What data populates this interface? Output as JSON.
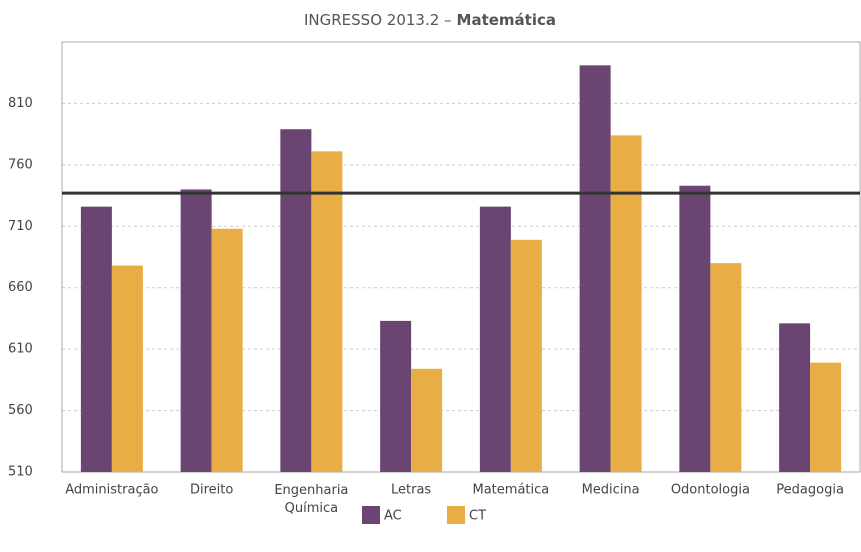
{
  "chart_data": {
    "type": "bar",
    "title": "INGRESSO 2013.2 –",
    "title_emphasis": "Matemática",
    "categories": [
      "Administração",
      "Direito",
      "Engenharia Química",
      "Letras",
      "Matemática",
      "Medicina",
      "Odontologia",
      "Pedagogia"
    ],
    "series": [
      {
        "name": "AC",
        "color": "#6b4572",
        "values": [
          726,
          740,
          789,
          633,
          726,
          841,
          743,
          631
        ]
      },
      {
        "name": "CT",
        "color": "#e8ae45",
        "values": [
          678,
          708,
          771,
          594,
          699,
          784,
          680,
          599
        ]
      }
    ],
    "reference_line": 737,
    "ylim": [
      510,
      860
    ],
    "yticks": [
      510,
      560,
      610,
      660,
      710,
      760,
      810
    ],
    "grid": true
  }
}
